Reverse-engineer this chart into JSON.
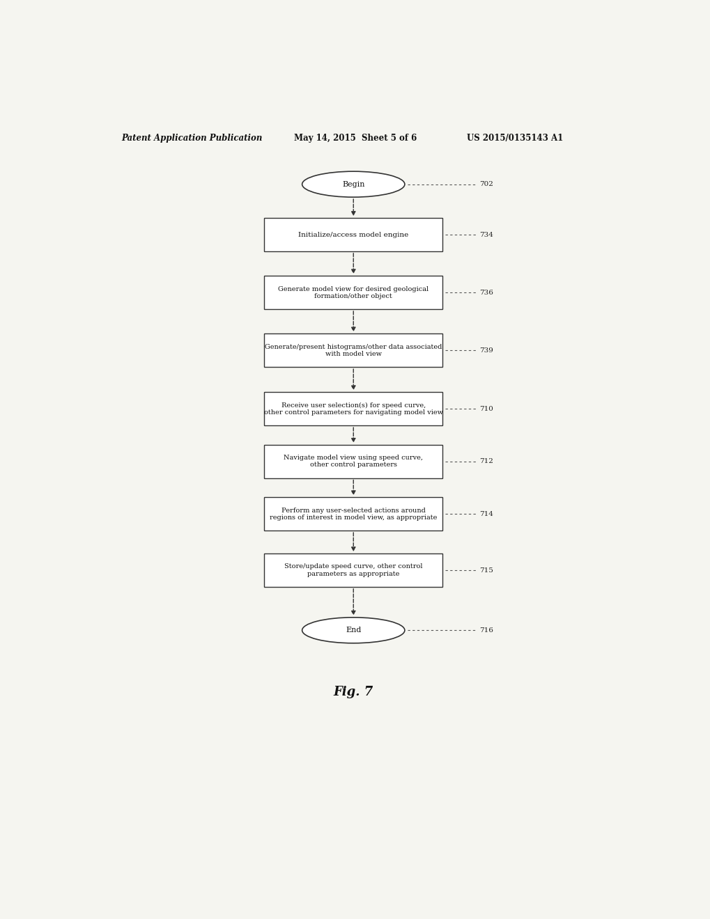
{
  "title_left": "Patent Application Publication",
  "title_mid": "May 14, 2015  Sheet 5 of 6",
  "title_right": "US 2015/0135143 A1",
  "fig_label": "Fig. 7",
  "background_color": "#f5f5f0",
  "nodes": [
    {
      "id": "begin",
      "type": "oval",
      "label": "Begin",
      "ref": "702"
    },
    {
      "id": "step1",
      "type": "rect",
      "label": "Initialize/access model engine",
      "ref": "734"
    },
    {
      "id": "step2",
      "type": "rect",
      "label": "Generate model view for desired geological\nformation/other object",
      "ref": "736"
    },
    {
      "id": "step3",
      "type": "rect",
      "label": "Generate/present histograms/other data associated\nwith model view",
      "ref": "739"
    },
    {
      "id": "step4",
      "type": "rect",
      "label": "Receive user selection(s) for speed curve,\nother control parameters for navigating model view",
      "ref": "710"
    },
    {
      "id": "step5",
      "type": "rect",
      "label": "Navigate model view using speed curve,\nother control parameters",
      "ref": "712"
    },
    {
      "id": "step6",
      "type": "rect",
      "label": "Perform any user-selected actions around\nregions of interest in model view, as appropriate",
      "ref": "714"
    },
    {
      "id": "step7",
      "type": "rect",
      "label": "Store/update speed curve, other control\nparameters as appropriate",
      "ref": "715"
    },
    {
      "id": "end",
      "type": "oval",
      "label": "End",
      "ref": "716"
    }
  ]
}
